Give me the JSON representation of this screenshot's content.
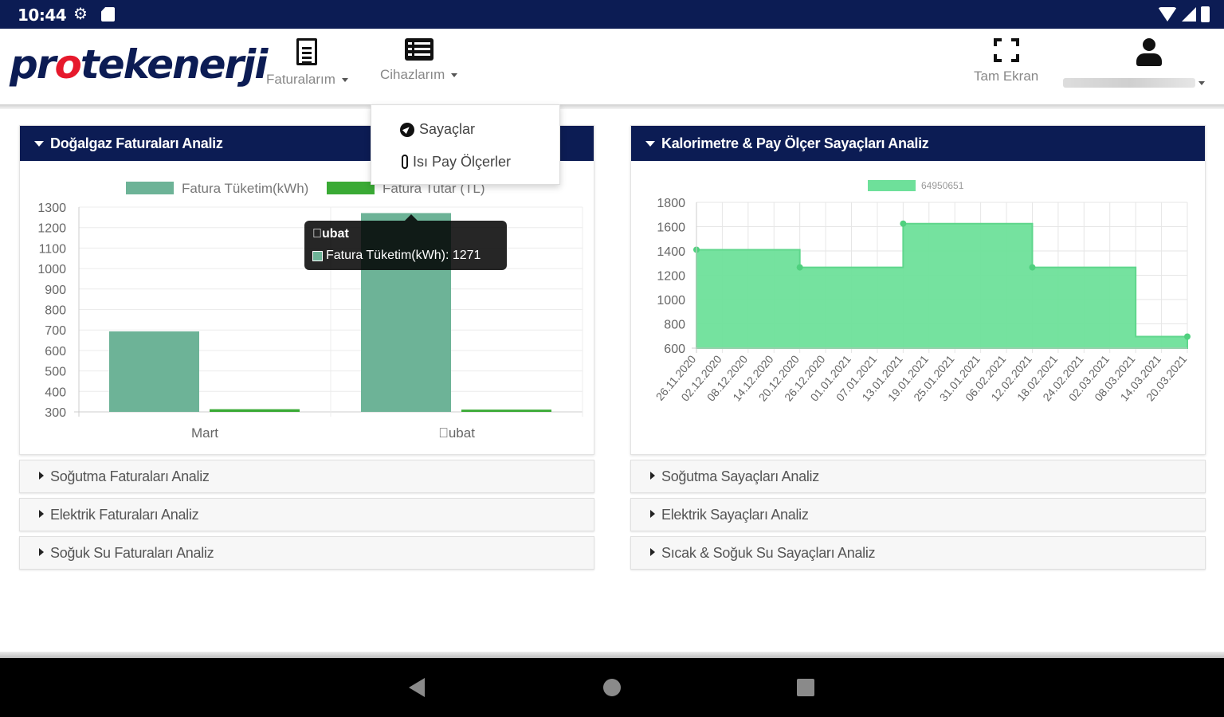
{
  "status_bar": {
    "time": "10:44"
  },
  "header": {
    "logo": {
      "left": "pr",
      "dot": "o",
      "right": "tekenerji"
    },
    "nav": [
      {
        "label": "Faturalarım",
        "icon": "file-icon"
      },
      {
        "label": "Cihazlarım",
        "icon": "list-icon"
      }
    ],
    "fullscreen_label": "Tam Ekran"
  },
  "dropdown": {
    "items": [
      {
        "label": "Sayaçlar",
        "icon": "compass-icon"
      },
      {
        "label": "Isı Pay Ölçerler",
        "icon": "thermometer-icon"
      }
    ]
  },
  "left_panel": {
    "title": "Doğalgaz Faturaları Analiz",
    "collapsed": [
      "Soğutma Faturaları Analiz",
      "Elektrik Faturaları Analiz",
      "Soğuk Su Faturaları Analiz"
    ]
  },
  "right_panel": {
    "title": "Kalorimetre & Pay Ölçer Sayaçları Analiz",
    "collapsed": [
      "Soğutma Sayaçları Analiz",
      "Elektrik Sayaçları Analiz",
      "Sıcak & Soğuk Su Sayaçları Analiz"
    ]
  },
  "colors": {
    "navy": "#0c1c54",
    "bar_consumption": "#6db397",
    "bar_amount": "#3aaa35",
    "area_fill": "#6ee09a",
    "area_point": "#4fd07e"
  },
  "tooltip": {
    "title": "\u0000ubat",
    "line": "Fatura Tüketim(kWh): 1271"
  },
  "chart_data": [
    {
      "type": "bar",
      "categories": [
        "Mart",
        "\u0000ubat"
      ],
      "series": [
        {
          "name": "Fatura Tüketim(kWh)",
          "values": [
            693,
            1271
          ]
        },
        {
          "name": "Fatura Tutar (TL)",
          "values": [
            313,
            311
          ]
        }
      ],
      "ylim": [
        300,
        1300
      ],
      "yticks": [
        1300,
        1200,
        1100,
        1000,
        900,
        800,
        700,
        600,
        500,
        400,
        300
      ],
      "legend": "top"
    },
    {
      "type": "area",
      "series": [
        {
          "name": "64950651"
        }
      ],
      "x": [
        "26.11.2020",
        "02.12.2020",
        "08.12.2020",
        "14.12.2020",
        "20.12.2020",
        "26.12.2020",
        "01.01.2021",
        "07.01.2021",
        "13.01.2021",
        "19.01.2021",
        "25.01.2021",
        "31.01.2021",
        "06.02.2021",
        "12.02.2021",
        "18.02.2021",
        "24.02.2021",
        "02.03.2021",
        "08.03.2021",
        "14.03.2021",
        "20.03.2021"
      ],
      "segments": [
        {
          "from": "26.11.2020",
          "value": 1410
        },
        {
          "from": "20.12.2020",
          "value": 1265
        },
        {
          "from": "13.01.2021",
          "value": 1625
        },
        {
          "from": "12.02.2021",
          "value": 1265
        },
        {
          "from": "08.03.2021",
          "value": 695
        }
      ],
      "points": [
        {
          "x": "26.11.2020",
          "y": 1410
        },
        {
          "x": "20.12.2020",
          "y": 1265
        },
        {
          "x": "13.01.2021",
          "y": 1625
        },
        {
          "x": "12.02.2021",
          "y": 1265
        },
        {
          "x": "end",
          "y": 695
        }
      ],
      "ylim": [
        600,
        1800
      ],
      "yticks": [
        1800,
        1600,
        1400,
        1200,
        1000,
        800,
        600
      ],
      "grid": true,
      "legend": "top"
    }
  ]
}
